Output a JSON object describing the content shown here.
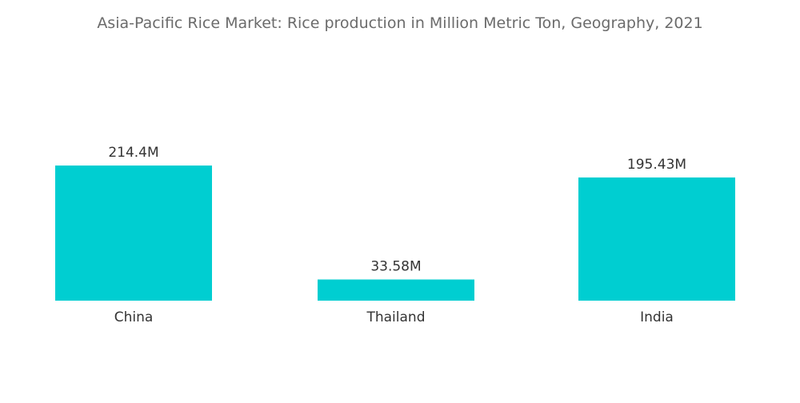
{
  "chart_data": {
    "type": "bar",
    "title": "Asia-Pacific Rice Market: Rice production in Million Metric Ton, Geography, 2021",
    "categories": [
      "China",
      "Thailand",
      "India"
    ],
    "values": [
      214.4,
      33.58,
      195.43
    ],
    "data_labels": [
      "214.4M",
      "33.58M",
      "195.43M"
    ],
    "bar_color": "#00ced1",
    "xlabel": "",
    "ylabel": "",
    "grid": false,
    "legend": "none"
  }
}
